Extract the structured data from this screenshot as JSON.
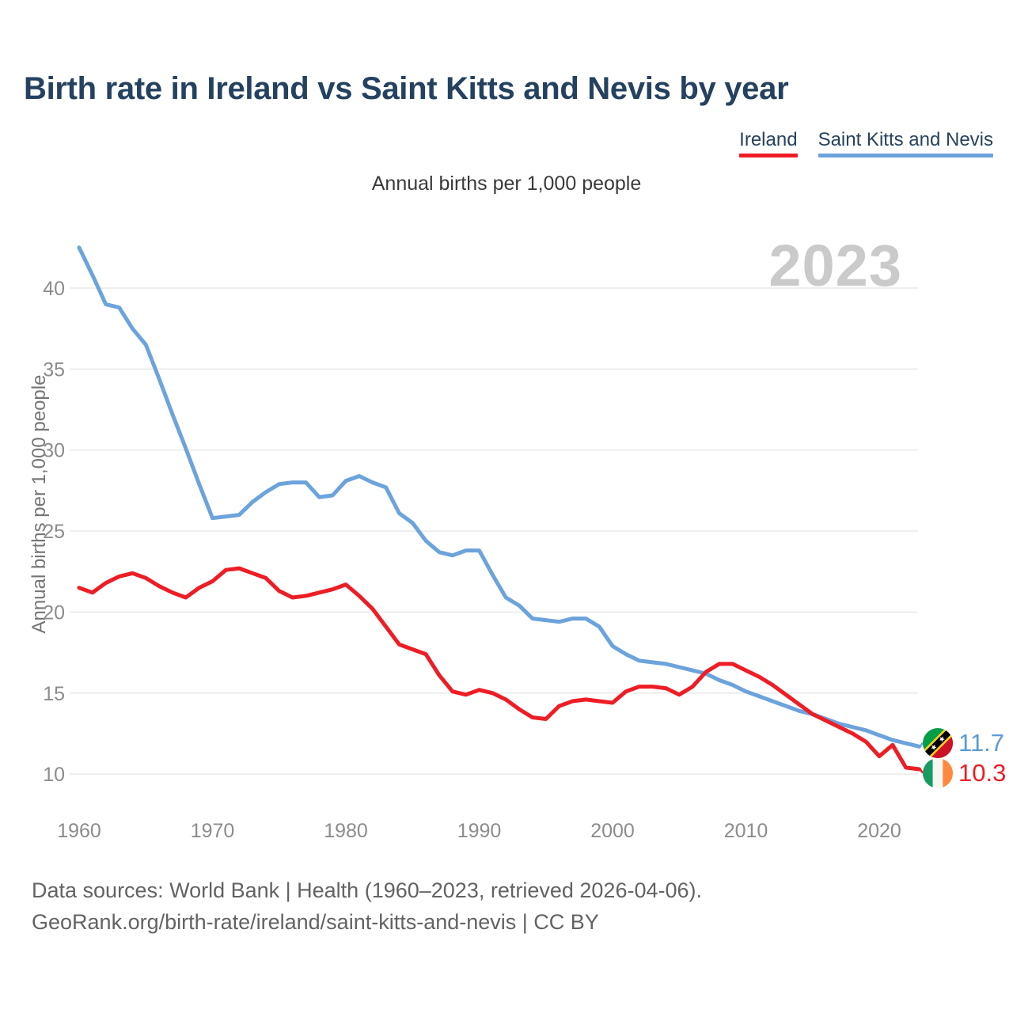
{
  "title": "Birth rate in Ireland vs Saint Kitts and Nevis by year",
  "subtitle": "Annual births per 1,000 people",
  "y_axis_label": "Annual births per 1,000 people",
  "watermark": "2023",
  "legend": [
    {
      "label": "Ireland",
      "color": "#ee1d25"
    },
    {
      "label": "Saint Kitts and Nevis",
      "color": "#6ca3dc"
    }
  ],
  "end_labels": [
    {
      "series": "Saint Kitts and Nevis",
      "value": "11.7",
      "color": "#5b9bd8",
      "flag": "saint-kitts-and-nevis-flag"
    },
    {
      "series": "Ireland",
      "value": "10.3",
      "color": "#ee1d25",
      "flag": "ireland-flag"
    }
  ],
  "footer": {
    "line1": "Data sources: World Bank | Health (1960–2023, retrieved 2026-04-06).",
    "line2": "GeoRank.org/birth-rate/ireland/saint-kitts-and-nevis | CC BY"
  },
  "chart_data": {
    "type": "line",
    "title": "Birth rate in Ireland vs Saint Kitts and Nevis by year",
    "ylabel": "Annual births per 1,000 people",
    "xlabel": "",
    "grid": true,
    "legend_position": "top-right",
    "ylim": [
      8.5,
      43.5
    ],
    "yticks": [
      10,
      15,
      20,
      25,
      30,
      35,
      40
    ],
    "xticks": [
      1960,
      1970,
      1980,
      1990,
      2000,
      2010,
      2020
    ],
    "x": [
      1960,
      1961,
      1962,
      1963,
      1964,
      1965,
      1966,
      1967,
      1968,
      1969,
      1970,
      1971,
      1972,
      1973,
      1974,
      1975,
      1976,
      1977,
      1978,
      1979,
      1980,
      1981,
      1982,
      1983,
      1984,
      1985,
      1986,
      1987,
      1988,
      1989,
      1990,
      1991,
      1992,
      1993,
      1994,
      1995,
      1996,
      1997,
      1998,
      1999,
      2000,
      2001,
      2002,
      2003,
      2004,
      2005,
      2006,
      2007,
      2008,
      2009,
      2010,
      2011,
      2012,
      2013,
      2014,
      2015,
      2016,
      2017,
      2018,
      2019,
      2020,
      2021,
      2022,
      2023
    ],
    "series": [
      {
        "name": "Saint Kitts and Nevis",
        "color": "#6ca3dc",
        "values": [
          42.5,
          40.8,
          39.0,
          38.8,
          37.5,
          36.5,
          34.4,
          32.2,
          30.1,
          27.9,
          25.8,
          25.9,
          26.0,
          26.8,
          27.4,
          27.9,
          28.0,
          28.0,
          27.1,
          27.2,
          28.1,
          28.4,
          28.0,
          27.7,
          26.1,
          25.5,
          24.4,
          23.7,
          23.5,
          23.8,
          23.8,
          22.3,
          20.9,
          20.4,
          19.6,
          19.5,
          19.4,
          19.6,
          19.6,
          19.1,
          17.9,
          17.4,
          17.0,
          16.9,
          16.8,
          16.6,
          16.4,
          16.2,
          15.8,
          15.5,
          15.1,
          14.8,
          14.5,
          14.2,
          13.9,
          13.7,
          13.4,
          13.1,
          12.9,
          12.7,
          12.4,
          12.1,
          11.9,
          11.7
        ]
      },
      {
        "name": "Ireland",
        "color": "#ee1d25",
        "values": [
          21.5,
          21.2,
          21.8,
          22.2,
          22.4,
          22.1,
          21.6,
          21.2,
          20.9,
          21.5,
          21.9,
          22.6,
          22.7,
          22.4,
          22.1,
          21.3,
          20.9,
          21.0,
          21.2,
          21.4,
          21.7,
          21.0,
          20.2,
          19.1,
          18.0,
          17.7,
          17.4,
          16.1,
          15.1,
          14.9,
          15.2,
          15.0,
          14.6,
          14.0,
          13.5,
          13.4,
          14.2,
          14.5,
          14.6,
          14.5,
          14.4,
          15.1,
          15.4,
          15.4,
          15.3,
          14.9,
          15.4,
          16.3,
          16.8,
          16.8,
          16.4,
          16.0,
          15.5,
          14.9,
          14.3,
          13.7,
          13.3,
          12.9,
          12.5,
          12.0,
          11.1,
          11.8,
          10.4,
          10.3
        ]
      }
    ]
  }
}
